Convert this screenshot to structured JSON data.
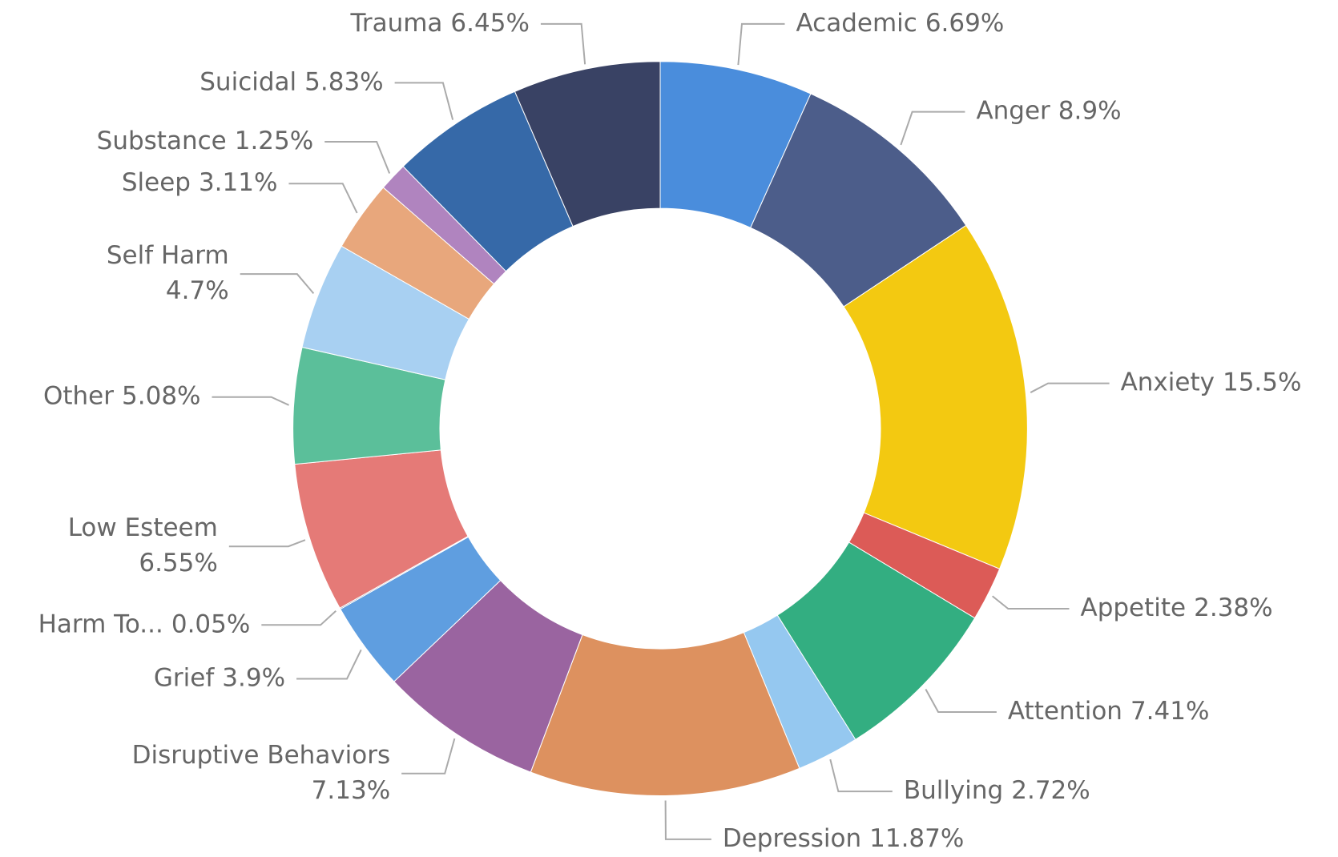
{
  "chart_data": {
    "type": "donut",
    "categories": [
      "Academic",
      "Anger",
      "Anxiety",
      "Appetite",
      "Attention",
      "Bullying",
      "Depression",
      "Disruptive Behaviors",
      "Grief",
      "Harm To...",
      "Low Esteem",
      "Other",
      "Self Harm",
      "Sleep",
      "Substance",
      "Suicidal",
      "Trauma"
    ],
    "values": [
      6.69,
      8.9,
      15.5,
      2.38,
      7.41,
      2.72,
      11.87,
      7.13,
      3.9,
      0.05,
      6.55,
      5.08,
      4.7,
      3.11,
      1.25,
      5.83,
      6.45
    ],
    "value_labels": [
      "6.69%",
      "8.9%",
      "15.5%",
      "2.38%",
      "7.41%",
      "2.72%",
      "11.87%",
      "7.13%",
      "3.9%",
      "0.05%",
      "6.55%",
      "5.08%",
      "4.7%",
      "3.11%",
      "1.25%",
      "5.83%",
      "6.45%"
    ],
    "colors": [
      "#4a8ddc",
      "#4c5d8a",
      "#f3c911",
      "#dc5b57",
      "#33ae81",
      "#95c8f0",
      "#dd915f",
      "#9a64a0",
      "#5f9ee0",
      "#6f7a8e",
      "#e57a77",
      "#5bbf9a",
      "#a8d0f2",
      "#e8a77c",
      "#b084bf",
      "#3669a8",
      "#394264"
    ]
  }
}
